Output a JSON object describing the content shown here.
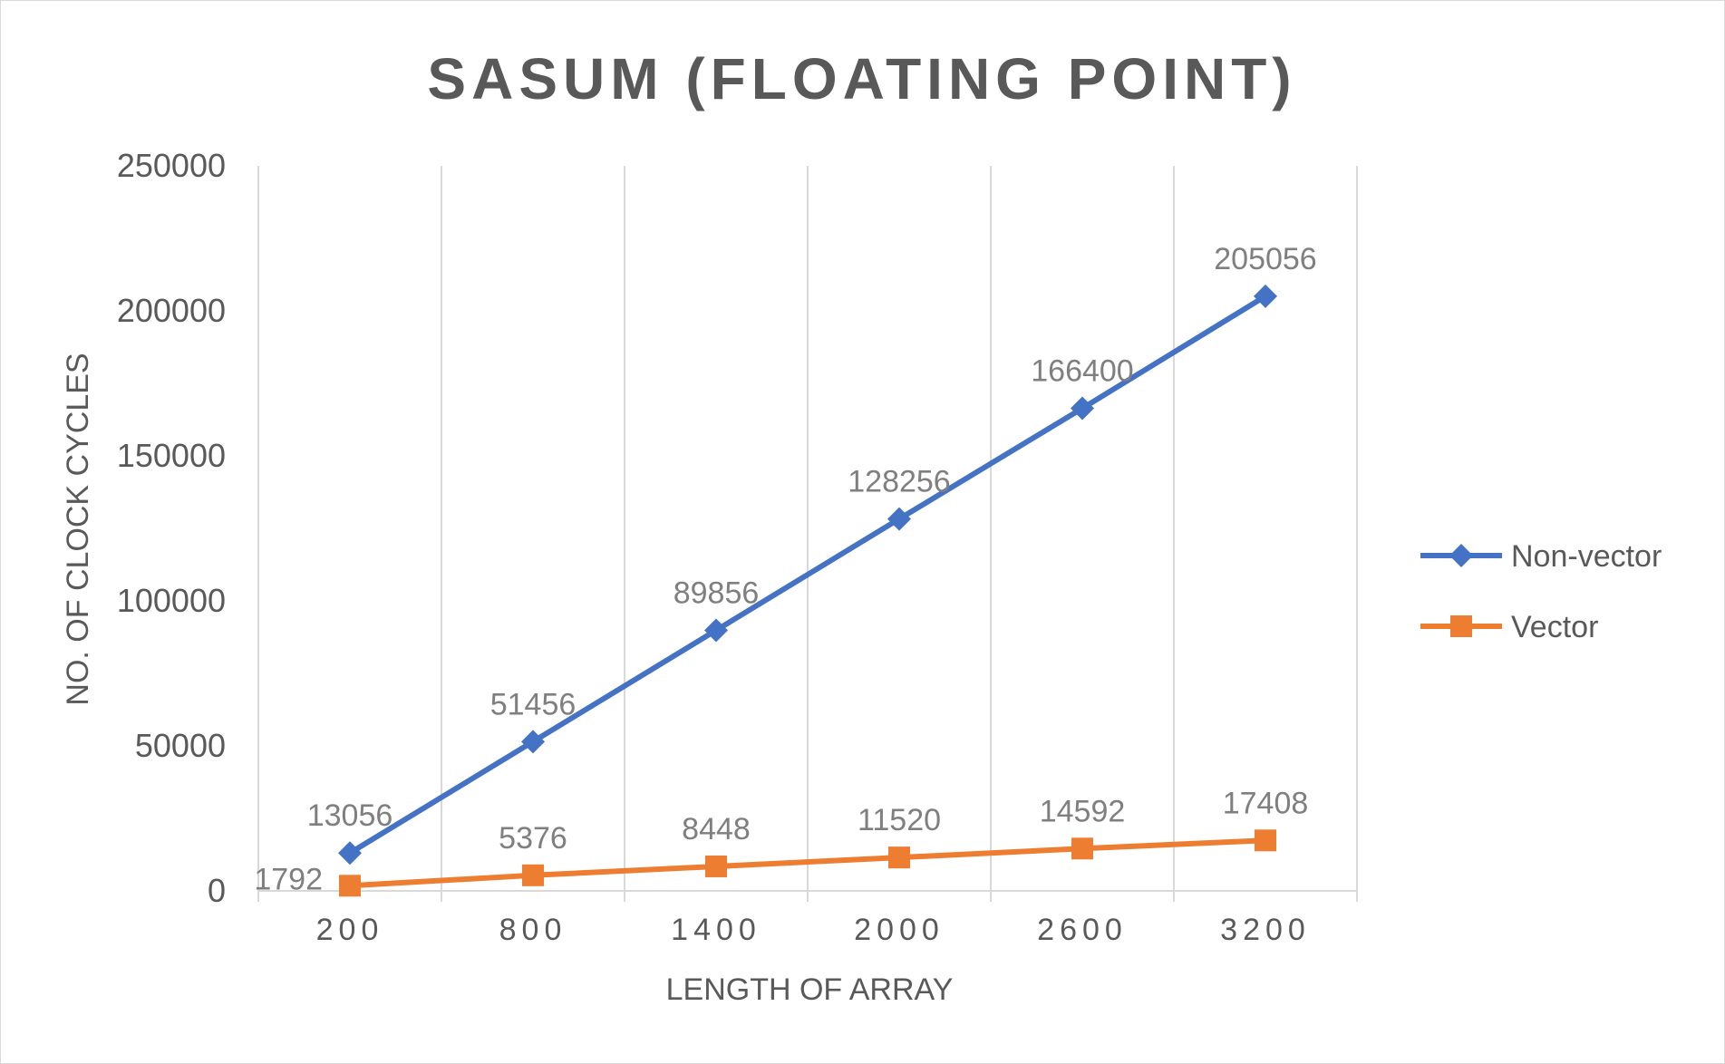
{
  "chart_data": {
    "type": "line",
    "title": "SASUM (FLOATING POINT)",
    "xlabel": "LENGTH OF ARRAY",
    "ylabel": "NO. OF CLOCK CYCLES",
    "categories": [
      "200",
      "800",
      "1400",
      "2000",
      "2600",
      "3200"
    ],
    "ylim": [
      0,
      250000
    ],
    "yticks": [
      "0",
      "50000",
      "100000",
      "150000",
      "200000",
      "250000"
    ],
    "grid": "vertical",
    "legend_position": "right",
    "series": [
      {
        "name": "Non-vector",
        "color": "#4472c4",
        "marker": "diamond",
        "values": [
          13056,
          51456,
          89856,
          128256,
          166400,
          205056
        ],
        "labels": [
          "13056",
          "51456",
          "89856",
          "128256",
          "166400",
          "205056"
        ]
      },
      {
        "name": "Vector",
        "color": "#ed7d31",
        "marker": "square",
        "values": [
          1792,
          5376,
          8448,
          11520,
          14592,
          17408
        ],
        "labels": [
          "1792",
          "5376",
          "8448",
          "11520",
          "14592",
          "17408"
        ]
      }
    ]
  }
}
